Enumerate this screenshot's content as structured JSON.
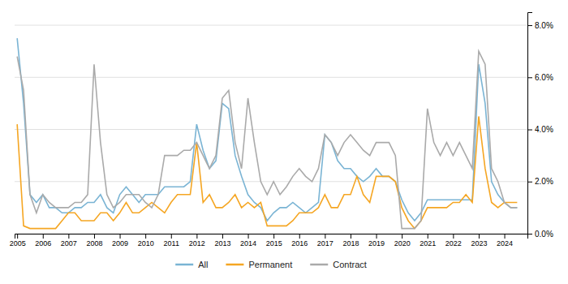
{
  "chart_data": {
    "type": "line",
    "x": [
      2005.0,
      2005.25,
      2005.5,
      2005.75,
      2006.0,
      2006.25,
      2006.5,
      2006.75,
      2007.0,
      2007.25,
      2007.5,
      2007.75,
      2008.0,
      2008.25,
      2008.5,
      2008.75,
      2009.0,
      2009.25,
      2009.5,
      2009.75,
      2010.0,
      2010.25,
      2010.5,
      2010.75,
      2011.0,
      2011.25,
      2011.5,
      2011.75,
      2012.0,
      2012.25,
      2012.5,
      2012.75,
      2013.0,
      2013.25,
      2013.5,
      2013.75,
      2014.0,
      2014.25,
      2014.5,
      2014.75,
      2015.0,
      2015.25,
      2015.5,
      2015.75,
      2016.0,
      2016.25,
      2016.5,
      2016.75,
      2017.0,
      2017.25,
      2017.5,
      2017.75,
      2018.0,
      2018.25,
      2018.5,
      2018.75,
      2019.0,
      2019.25,
      2019.5,
      2019.75,
      2020.0,
      2020.25,
      2020.5,
      2020.75,
      2021.0,
      2021.25,
      2021.5,
      2021.75,
      2022.0,
      2022.25,
      2022.5,
      2022.75,
      2023.0,
      2023.25,
      2023.5,
      2023.75,
      2024.0,
      2024.25,
      2024.5
    ],
    "series": [
      {
        "name": "All",
        "color": "#7ab4d4",
        "values": [
          7.5,
          5.0,
          1.5,
          1.2,
          1.5,
          1.0,
          1.0,
          0.8,
          0.8,
          1.0,
          1.0,
          1.2,
          1.2,
          1.5,
          1.0,
          0.8,
          1.5,
          1.8,
          1.5,
          1.2,
          1.5,
          1.5,
          1.5,
          1.8,
          1.8,
          1.8,
          1.8,
          2.0,
          4.2,
          3.2,
          2.5,
          2.8,
          5.0,
          4.8,
          3.0,
          2.2,
          1.5,
          1.2,
          1.0,
          0.5,
          0.8,
          1.0,
          1.0,
          1.2,
          1.0,
          0.8,
          1.0,
          1.2,
          3.8,
          3.5,
          2.8,
          2.5,
          2.5,
          2.2,
          2.0,
          2.2,
          2.5,
          2.2,
          2.2,
          2.0,
          1.3,
          0.8,
          0.5,
          0.8,
          1.3,
          1.3,
          1.3,
          1.3,
          1.3,
          1.3,
          1.3,
          1.3,
          6.5,
          5.0,
          2.0,
          1.5,
          1.2,
          1.0,
          1.0
        ]
      },
      {
        "name": "Permanent",
        "color": "#f5a623",
        "values": [
          4.2,
          0.3,
          0.2,
          0.2,
          0.2,
          0.2,
          0.2,
          0.5,
          0.8,
          0.8,
          0.5,
          0.5,
          0.5,
          0.8,
          0.8,
          0.5,
          0.8,
          1.2,
          0.8,
          0.8,
          1.0,
          1.2,
          1.0,
          0.8,
          1.2,
          1.5,
          1.5,
          1.5,
          3.5,
          1.2,
          1.5,
          1.0,
          1.0,
          1.2,
          1.5,
          1.0,
          1.2,
          1.0,
          1.2,
          0.3,
          0.3,
          0.3,
          0.3,
          0.5,
          0.8,
          0.8,
          0.8,
          1.0,
          1.5,
          1.0,
          1.0,
          1.5,
          1.5,
          2.2,
          1.5,
          1.2,
          2.2,
          2.2,
          2.2,
          2.0,
          1.0,
          0.5,
          0.2,
          0.5,
          1.0,
          1.0,
          1.0,
          1.0,
          1.2,
          1.2,
          1.5,
          1.2,
          4.5,
          2.5,
          1.2,
          1.0,
          1.2,
          1.2,
          1.2
        ]
      },
      {
        "name": "Contract",
        "color": "#aaaaaa",
        "values": [
          6.8,
          5.5,
          1.5,
          0.8,
          1.5,
          1.2,
          1.0,
          1.0,
          1.0,
          1.2,
          1.2,
          1.5,
          6.5,
          3.5,
          1.5,
          1.0,
          1.2,
          1.5,
          1.5,
          1.5,
          1.2,
          1.0,
          1.5,
          3.0,
          3.0,
          3.0,
          3.2,
          3.2,
          3.5,
          3.0,
          2.5,
          3.0,
          5.2,
          5.5,
          3.5,
          2.5,
          5.2,
          3.5,
          2.0,
          1.5,
          2.0,
          1.5,
          1.8,
          2.2,
          2.5,
          2.2,
          2.0,
          2.5,
          3.8,
          3.5,
          3.0,
          3.5,
          3.8,
          3.5,
          3.2,
          3.0,
          3.5,
          3.5,
          3.5,
          3.0,
          0.2,
          0.2,
          0.2,
          0.5,
          4.8,
          3.5,
          3.0,
          3.5,
          3.0,
          3.5,
          3.0,
          2.5,
          7.0,
          6.5,
          2.5,
          2.0,
          1.2,
          1.0,
          1.0
        ]
      }
    ],
    "xlim": [
      2004.9,
      2024.9
    ],
    "xticks": [
      2005,
      2006,
      2007,
      2008,
      2009,
      2010,
      2011,
      2012,
      2013,
      2014,
      2015,
      2016,
      2017,
      2018,
      2019,
      2020,
      2021,
      2022,
      2023,
      2024
    ],
    "ylim": [
      0,
      8.5
    ],
    "yticks": [
      {
        "value": 0.0,
        "label": "0.0%"
      },
      {
        "value": 2.0,
        "label": "2.0%"
      },
      {
        "value": 4.0,
        "label": "4.0%"
      },
      {
        "value": 6.0,
        "label": "6.0%"
      },
      {
        "value": 8.0,
        "label": "8.0%"
      }
    ],
    "grid": true,
    "legend": "bottom"
  }
}
